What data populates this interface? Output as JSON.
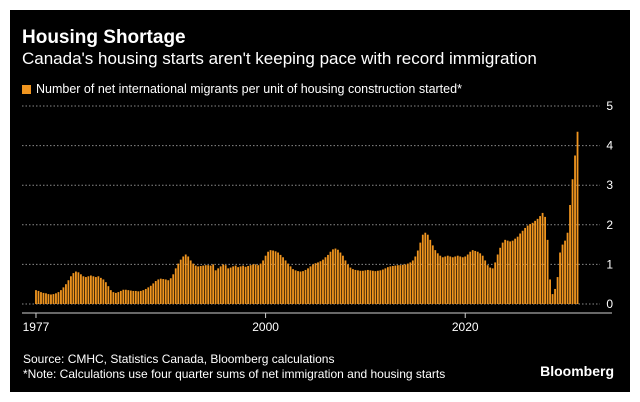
{
  "header": {
    "title": "Housing Shortage",
    "subtitle": "Canada's housing starts aren't keeping pace with record immigration"
  },
  "footer": {
    "source": "Source: CMHC, Statistics Canada, Bloomberg calculations",
    "note": "*Note: Calculations use four quarter sums of net immigration and housing starts",
    "brand": "Bloomberg"
  },
  "colors": {
    "bar": "#f0951f",
    "background": "#000000",
    "grid": "#8a8a8a",
    "text": "#ffffff"
  },
  "chart_data": {
    "type": "bar",
    "title": "Housing Shortage",
    "subtitle": "Canada's housing starts aren't keeping pace with record immigration",
    "legend": [
      "Number of net international migrants per unit of housing construction started*"
    ],
    "series": [
      {
        "name": "Number of net international migrants per unit of housing construction started*",
        "x_start": 1977,
        "frequency": "quarterly",
        "values": [
          0.35,
          0.33,
          0.3,
          0.28,
          0.27,
          0.25,
          0.24,
          0.25,
          0.27,
          0.3,
          0.35,
          0.42,
          0.5,
          0.6,
          0.7,
          0.78,
          0.82,
          0.8,
          0.75,
          0.7,
          0.68,
          0.7,
          0.72,
          0.7,
          0.68,
          0.7,
          0.66,
          0.62,
          0.55,
          0.45,
          0.35,
          0.3,
          0.28,
          0.3,
          0.33,
          0.36,
          0.36,
          0.35,
          0.34,
          0.33,
          0.33,
          0.32,
          0.33,
          0.35,
          0.38,
          0.42,
          0.46,
          0.52,
          0.58,
          0.62,
          0.64,
          0.63,
          0.62,
          0.6,
          0.65,
          0.75,
          0.9,
          1.02,
          1.12,
          1.2,
          1.25,
          1.2,
          1.1,
          1.02,
          0.97,
          0.95,
          0.96,
          0.97,
          0.98,
          0.98,
          0.97,
          1.0,
          0.85,
          0.9,
          0.95,
          1.0,
          0.98,
          0.9,
          0.92,
          0.95,
          0.97,
          0.93,
          0.95,
          0.97,
          0.94,
          0.96,
          0.98,
          1.0,
          1.0,
          0.98,
          1.02,
          1.1,
          1.22,
          1.32,
          1.36,
          1.35,
          1.33,
          1.3,
          1.24,
          1.18,
          1.1,
          1.02,
          0.95,
          0.88,
          0.85,
          0.83,
          0.82,
          0.83,
          0.86,
          0.9,
          0.95,
          1.0,
          1.03,
          1.05,
          1.08,
          1.12,
          1.18,
          1.24,
          1.32,
          1.38,
          1.4,
          1.37,
          1.3,
          1.22,
          1.1,
          1.0,
          0.92,
          0.88,
          0.86,
          0.85,
          0.84,
          0.84,
          0.85,
          0.86,
          0.85,
          0.84,
          0.83,
          0.84,
          0.85,
          0.87,
          0.9,
          0.93,
          0.95,
          0.96,
          0.97,
          0.98,
          0.98,
          0.99,
          1.0,
          1.02,
          1.05,
          1.1,
          1.2,
          1.35,
          1.55,
          1.75,
          1.8,
          1.75,
          1.62,
          1.48,
          1.36,
          1.28,
          1.22,
          1.18,
          1.2,
          1.22,
          1.2,
          1.18,
          1.2,
          1.22,
          1.2,
          1.18,
          1.2,
          1.25,
          1.32,
          1.36,
          1.34,
          1.32,
          1.28,
          1.22,
          1.1,
          0.98,
          0.92,
          0.9,
          1.05,
          1.25,
          1.42,
          1.55,
          1.62,
          1.6,
          1.58,
          1.6,
          1.65,
          1.7,
          1.78,
          1.85,
          1.92,
          1.98,
          2.02,
          2.05,
          2.1,
          2.15,
          2.22,
          2.3,
          2.2,
          1.62,
          0.62,
          0.25,
          0.38,
          0.68,
          1.3,
          1.5,
          1.6,
          1.8,
          2.5,
          3.15,
          3.75,
          4.35
        ]
      }
    ],
    "x_ticks": [
      "1977",
      "2000",
      "2020"
    ],
    "x_tick_values": [
      1977,
      2000,
      2020
    ],
    "y_ticks": [
      "0",
      "1",
      "2",
      "3",
      "4",
      "5"
    ],
    "y_tick_values": [
      0,
      1,
      2,
      3,
      4,
      5
    ],
    "ylim": [
      0,
      5
    ],
    "xlim": [
      1976,
      2033
    ],
    "grid": "horizontal dotted",
    "legend_position": "top-left"
  }
}
